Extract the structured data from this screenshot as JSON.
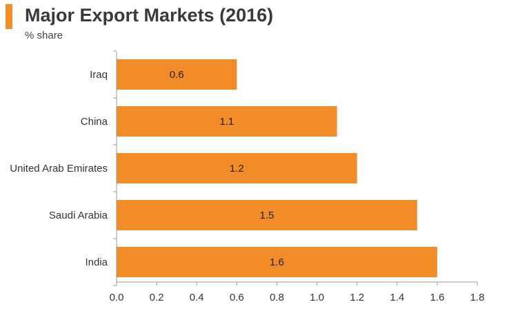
{
  "header": {
    "title": "Major Export Markets (2016)",
    "subtitle": "% share"
  },
  "colors": {
    "accent": "#f28c28",
    "bar": "#f28c28",
    "axis": "#999999",
    "text": "#333333"
  },
  "chart_data": {
    "type": "bar",
    "orientation": "horizontal",
    "title": "Major Export Markets (2016)",
    "subtitle": "% share",
    "xlabel": "",
    "ylabel": "",
    "categories": [
      "Iraq",
      "China",
      "United Arab Emirates",
      "Saudi Arabia",
      "India"
    ],
    "values": [
      0.6,
      1.1,
      1.2,
      1.5,
      1.6
    ],
    "value_labels": [
      "0.6",
      "1.1",
      "1.2",
      "1.5",
      "1.6"
    ],
    "xlim": [
      0,
      1.8
    ],
    "ticks": [
      0.0,
      0.2,
      0.4,
      0.6,
      0.8,
      1.0,
      1.2,
      1.4,
      1.6,
      1.8
    ],
    "tick_labels": [
      "0.0",
      "0.2",
      "0.4",
      "0.6",
      "0.8",
      "1.0",
      "1.2",
      "1.4",
      "1.6",
      "1.8"
    ],
    "grid": false,
    "legend": "none"
  }
}
